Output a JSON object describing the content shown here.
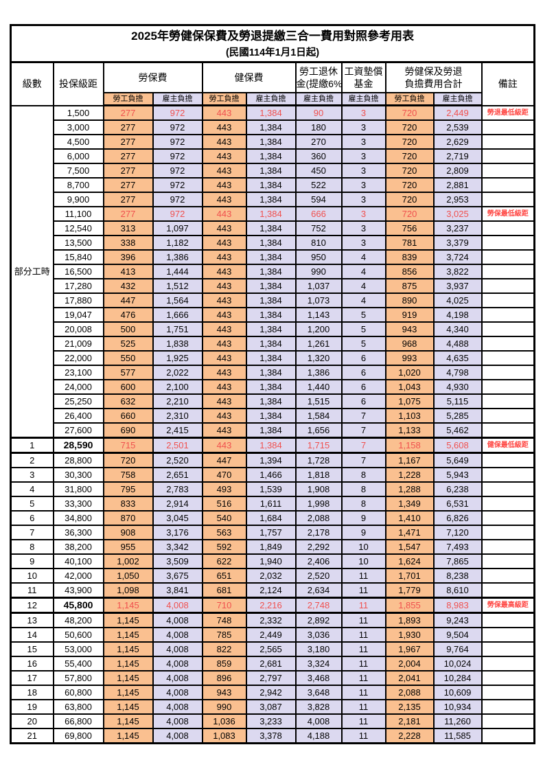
{
  "title": "2025年勞健保保費及勞退提繳三合一費用對照參考用表",
  "subtitle": "(民國114年1月1日起)",
  "header": {
    "level": "級數",
    "bracket": "投保級距",
    "labor_insurance": "勞保費",
    "health_insurance": "健保費",
    "pension_line1": "勞工退休",
    "pension_line2": "金(提繳6%)",
    "wage_fund_line1": "工資墊償",
    "wage_fund_line2": "基金",
    "total_line1": "勞健保及勞退",
    "total_line2": "負擔費用合計",
    "remark": "備註",
    "employee_label": "勞工負擔",
    "employer_label": "雇主負擔"
  },
  "part_time_label": "部分工時",
  "part_time_rowspan": 23,
  "colors": {
    "employee_bg": "#FAC090",
    "employer_bg": "#DCD9F0",
    "key_row_text": "#F0504E",
    "remark_text": "#FF4642",
    "border": "#000000"
  },
  "chart_data": {
    "type": "table",
    "title": "2025年勞健保保費及勞退提繳三合一費用對照參考用表 (民國114年1月1日起)",
    "columns": [
      "級數",
      "投保級距",
      "勞保費-勞工負擔",
      "勞保費-雇主負擔",
      "健保費-勞工負擔",
      "健保費-雇主負擔",
      "勞工退休金(提繳6%)-雇主負擔",
      "工資墊償基金-雇主負擔",
      "合計-勞工負擔",
      "合計-雇主負擔",
      "備註"
    ]
  },
  "rows": [
    {
      "lv": "",
      "br": "1,500",
      "c": [
        "277",
        "972",
        "443",
        "1,384",
        "90",
        "3",
        "720",
        "2,449"
      ],
      "rm": "勞退最低級距",
      "key": true
    },
    {
      "lv": "",
      "br": "3,000",
      "c": [
        "277",
        "972",
        "443",
        "1,384",
        "180",
        "3",
        "720",
        "2,539"
      ],
      "rm": ""
    },
    {
      "lv": "",
      "br": "4,500",
      "c": [
        "277",
        "972",
        "443",
        "1,384",
        "270",
        "3",
        "720",
        "2,629"
      ],
      "rm": ""
    },
    {
      "lv": "",
      "br": "6,000",
      "c": [
        "277",
        "972",
        "443",
        "1,384",
        "360",
        "3",
        "720",
        "2,719"
      ],
      "rm": ""
    },
    {
      "lv": "",
      "br": "7,500",
      "c": [
        "277",
        "972",
        "443",
        "1,384",
        "450",
        "3",
        "720",
        "2,809"
      ],
      "rm": ""
    },
    {
      "lv": "",
      "br": "8,700",
      "c": [
        "277",
        "972",
        "443",
        "1,384",
        "522",
        "3",
        "720",
        "2,881"
      ],
      "rm": ""
    },
    {
      "lv": "",
      "br": "9,900",
      "c": [
        "277",
        "972",
        "443",
        "1,384",
        "594",
        "3",
        "720",
        "2,953"
      ],
      "rm": ""
    },
    {
      "lv": "",
      "br": "11,100",
      "c": [
        "277",
        "972",
        "443",
        "1,384",
        "666",
        "3",
        "720",
        "3,025"
      ],
      "rm": "勞保最低級距",
      "key": true
    },
    {
      "lv": "",
      "br": "12,540",
      "c": [
        "313",
        "1,097",
        "443",
        "1,384",
        "752",
        "3",
        "756",
        "3,237"
      ],
      "rm": ""
    },
    {
      "lv": "",
      "br": "13,500",
      "c": [
        "338",
        "1,182",
        "443",
        "1,384",
        "810",
        "3",
        "781",
        "3,379"
      ],
      "rm": ""
    },
    {
      "lv": "",
      "br": "15,840",
      "c": [
        "396",
        "1,386",
        "443",
        "1,384",
        "950",
        "4",
        "839",
        "3,724"
      ],
      "rm": ""
    },
    {
      "lv": "",
      "br": "16,500",
      "c": [
        "413",
        "1,444",
        "443",
        "1,384",
        "990",
        "4",
        "856",
        "3,822"
      ],
      "rm": ""
    },
    {
      "lv": "",
      "br": "17,280",
      "c": [
        "432",
        "1,512",
        "443",
        "1,384",
        "1,037",
        "4",
        "875",
        "3,937"
      ],
      "rm": ""
    },
    {
      "lv": "",
      "br": "17,880",
      "c": [
        "447",
        "1,564",
        "443",
        "1,384",
        "1,073",
        "4",
        "890",
        "4,025"
      ],
      "rm": ""
    },
    {
      "lv": "",
      "br": "19,047",
      "c": [
        "476",
        "1,666",
        "443",
        "1,384",
        "1,143",
        "5",
        "919",
        "4,198"
      ],
      "rm": ""
    },
    {
      "lv": "",
      "br": "20,008",
      "c": [
        "500",
        "1,751",
        "443",
        "1,384",
        "1,200",
        "5",
        "943",
        "4,340"
      ],
      "rm": ""
    },
    {
      "lv": "",
      "br": "21,009",
      "c": [
        "525",
        "1,838",
        "443",
        "1,384",
        "1,261",
        "5",
        "968",
        "4,488"
      ],
      "rm": ""
    },
    {
      "lv": "",
      "br": "22,000",
      "c": [
        "550",
        "1,925",
        "443",
        "1,384",
        "1,320",
        "6",
        "993",
        "4,635"
      ],
      "rm": ""
    },
    {
      "lv": "",
      "br": "23,100",
      "c": [
        "577",
        "2,022",
        "443",
        "1,384",
        "1,386",
        "6",
        "1,020",
        "4,798"
      ],
      "rm": ""
    },
    {
      "lv": "",
      "br": "24,000",
      "c": [
        "600",
        "2,100",
        "443",
        "1,384",
        "1,440",
        "6",
        "1,043",
        "4,930"
      ],
      "rm": ""
    },
    {
      "lv": "",
      "br": "25,250",
      "c": [
        "632",
        "2,210",
        "443",
        "1,384",
        "1,515",
        "6",
        "1,075",
        "5,115"
      ],
      "rm": ""
    },
    {
      "lv": "",
      "br": "26,400",
      "c": [
        "660",
        "2,310",
        "443",
        "1,384",
        "1,584",
        "7",
        "1,103",
        "5,285"
      ],
      "rm": ""
    },
    {
      "lv": "",
      "br": "27,600",
      "c": [
        "690",
        "2,415",
        "443",
        "1,384",
        "1,656",
        "7",
        "1,133",
        "5,462"
      ],
      "rm": ""
    },
    {
      "lv": "1",
      "br": "28,590",
      "c": [
        "715",
        "2,501",
        "443",
        "1,384",
        "1,715",
        "7",
        "1,158",
        "5,608"
      ],
      "rm": "健保最低級距",
      "key": true,
      "sec": true,
      "bb": true
    },
    {
      "lv": "2",
      "br": "28,800",
      "c": [
        "720",
        "2,520",
        "447",
        "1,394",
        "1,728",
        "7",
        "1,167",
        "5,649"
      ],
      "rm": ""
    },
    {
      "lv": "3",
      "br": "30,300",
      "c": [
        "758",
        "2,651",
        "470",
        "1,466",
        "1,818",
        "8",
        "1,228",
        "5,943"
      ],
      "rm": ""
    },
    {
      "lv": "4",
      "br": "31,800",
      "c": [
        "795",
        "2,783",
        "493",
        "1,539",
        "1,908",
        "8",
        "1,288",
        "6,238"
      ],
      "rm": ""
    },
    {
      "lv": "5",
      "br": "33,300",
      "c": [
        "833",
        "2,914",
        "516",
        "1,611",
        "1,998",
        "8",
        "1,349",
        "6,531"
      ],
      "rm": ""
    },
    {
      "lv": "6",
      "br": "34,800",
      "c": [
        "870",
        "3,045",
        "540",
        "1,684",
        "2,088",
        "9",
        "1,410",
        "6,826"
      ],
      "rm": ""
    },
    {
      "lv": "7",
      "br": "36,300",
      "c": [
        "908",
        "3,176",
        "563",
        "1,757",
        "2,178",
        "9",
        "1,471",
        "7,120"
      ],
      "rm": ""
    },
    {
      "lv": "8",
      "br": "38,200",
      "c": [
        "955",
        "3,342",
        "592",
        "1,849",
        "2,292",
        "10",
        "1,547",
        "7,493"
      ],
      "rm": ""
    },
    {
      "lv": "9",
      "br": "40,100",
      "c": [
        "1,002",
        "3,509",
        "622",
        "1,940",
        "2,406",
        "10",
        "1,624",
        "7,865"
      ],
      "rm": ""
    },
    {
      "lv": "10",
      "br": "42,000",
      "c": [
        "1,050",
        "3,675",
        "651",
        "2,032",
        "2,520",
        "11",
        "1,701",
        "8,238"
      ],
      "rm": ""
    },
    {
      "lv": "11",
      "br": "43,900",
      "c": [
        "1,098",
        "3,841",
        "681",
        "2,124",
        "2,634",
        "11",
        "1,779",
        "8,610"
      ],
      "rm": ""
    },
    {
      "lv": "12",
      "br": "45,800",
      "c": [
        "1,145",
        "4,008",
        "710",
        "2,216",
        "2,748",
        "11",
        "1,855",
        "8,983"
      ],
      "rm": "勞保最高級距",
      "key": true,
      "sec": true,
      "bb": true
    },
    {
      "lv": "13",
      "br": "48,200",
      "c": [
        "1,145",
        "4,008",
        "748",
        "2,332",
        "2,892",
        "11",
        "1,893",
        "9,243"
      ],
      "rm": ""
    },
    {
      "lv": "14",
      "br": "50,600",
      "c": [
        "1,145",
        "4,008",
        "785",
        "2,449",
        "3,036",
        "11",
        "1,930",
        "9,504"
      ],
      "rm": ""
    },
    {
      "lv": "15",
      "br": "53,000",
      "c": [
        "1,145",
        "4,008",
        "822",
        "2,565",
        "3,180",
        "11",
        "1,967",
        "9,764"
      ],
      "rm": ""
    },
    {
      "lv": "16",
      "br": "55,400",
      "c": [
        "1,145",
        "4,008",
        "859",
        "2,681",
        "3,324",
        "11",
        "2,004",
        "10,024"
      ],
      "rm": ""
    },
    {
      "lv": "17",
      "br": "57,800",
      "c": [
        "1,145",
        "4,008",
        "896",
        "2,797",
        "3,468",
        "11",
        "2,041",
        "10,284"
      ],
      "rm": ""
    },
    {
      "lv": "18",
      "br": "60,800",
      "c": [
        "1,145",
        "4,008",
        "943",
        "2,942",
        "3,648",
        "11",
        "2,088",
        "10,609"
      ],
      "rm": ""
    },
    {
      "lv": "19",
      "br": "63,800",
      "c": [
        "1,145",
        "4,008",
        "990",
        "3,087",
        "3,828",
        "11",
        "2,135",
        "10,934"
      ],
      "rm": ""
    },
    {
      "lv": "20",
      "br": "66,800",
      "c": [
        "1,145",
        "4,008",
        "1,036",
        "3,233",
        "4,008",
        "11",
        "2,181",
        "11,260"
      ],
      "rm": ""
    },
    {
      "lv": "21",
      "br": "69,800",
      "c": [
        "1,145",
        "4,008",
        "1,083",
        "3,378",
        "4,188",
        "11",
        "2,228",
        "11,585"
      ],
      "rm": ""
    }
  ]
}
